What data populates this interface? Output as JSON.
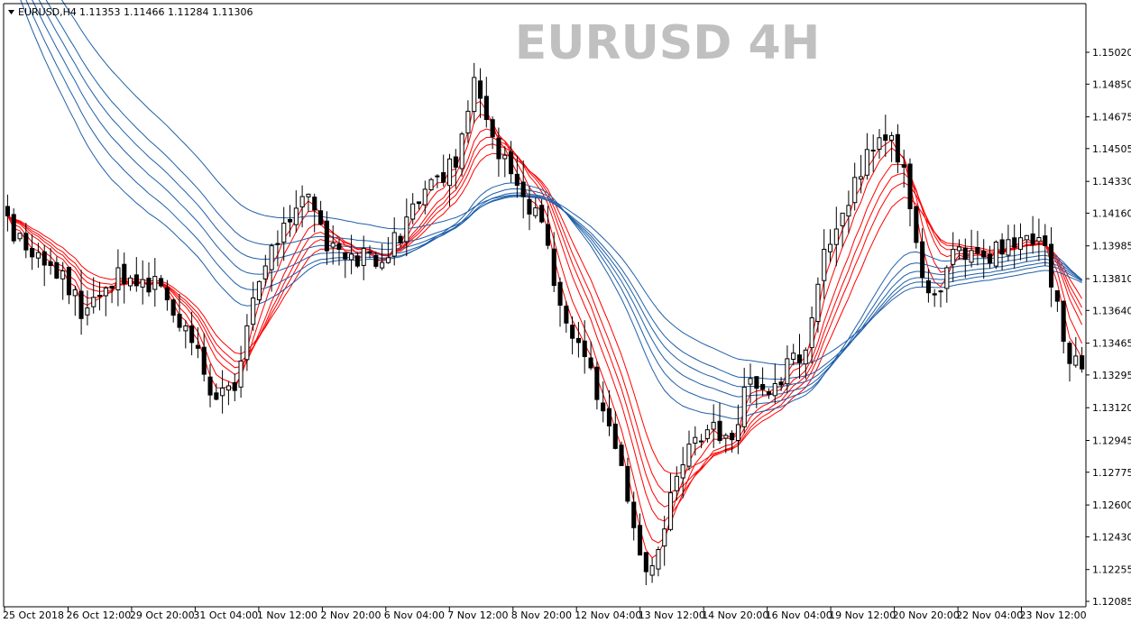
{
  "header": {
    "symbol": "EURUSD,H4",
    "ohlc": "1.11353 1.11466 1.11284 1.11306"
  },
  "watermark": "EURUSD  4H",
  "colors": {
    "background": "#ffffff",
    "bull_body": "#ffffff",
    "bear_body": "#000000",
    "fast_ma": "#ff0000",
    "slow_ma": "#1f5fa8"
  },
  "chart_data": {
    "type": "candlestick",
    "title": "EURUSD  4H",
    "ylim": [
      1.12085,
      1.1515
    ],
    "y_ticks": [
      "1.15020",
      "1.14850",
      "1.14675",
      "1.14505",
      "1.14330",
      "1.14160",
      "1.13985",
      "1.13810",
      "1.13640",
      "1.13465",
      "1.13295",
      "1.13120",
      "1.12945",
      "1.12775",
      "1.12600",
      "1.12430",
      "1.12255",
      "1.12085"
    ],
    "x_ticks": [
      "25 Oct 2018",
      "26 Oct 12:00",
      "29 Oct 20:00",
      "31 Oct 04:00",
      "1 Nov 12:00",
      "2 Nov 20:00",
      "6 Nov 04:00",
      "7 Nov 12:00",
      "8 Nov 20:00",
      "12 Nov 04:00",
      "13 Nov 12:00",
      "14 Nov 20:00",
      "16 Nov 04:00",
      "19 Nov 12:00",
      "20 Nov 20:00",
      "22 Nov 04:00",
      "23 Nov 12:00"
    ],
    "x_anchors": [
      [
        0,
        1.141
      ],
      [
        8,
        1.1385
      ],
      [
        12,
        1.1365
      ],
      [
        18,
        1.1385
      ],
      [
        25,
        1.1375
      ],
      [
        30,
        1.1348
      ],
      [
        34,
        1.1312
      ],
      [
        38,
        1.1332
      ],
      [
        40,
        1.1375
      ],
      [
        45,
        1.1412
      ],
      [
        49,
        1.143
      ],
      [
        52,
        1.1395
      ],
      [
        58,
        1.1392
      ],
      [
        62,
        1.1395
      ],
      [
        66,
        1.1415
      ],
      [
        69,
        1.1428
      ],
      [
        73,
        1.1445
      ],
      [
        76,
        1.149
      ],
      [
        79,
        1.146
      ],
      [
        82,
        1.1432
      ],
      [
        85,
        1.142
      ],
      [
        88,
        1.14
      ],
      [
        90,
        1.1365
      ],
      [
        95,
        1.133
      ],
      [
        98,
        1.1305
      ],
      [
        101,
        1.1265
      ],
      [
        104,
        1.122
      ],
      [
        106,
        1.124
      ],
      [
        110,
        1.1285
      ],
      [
        114,
        1.13
      ],
      [
        118,
        1.1295
      ],
      [
        121,
        1.133
      ],
      [
        124,
        1.132
      ],
      [
        127,
        1.1335
      ],
      [
        130,
        1.1345
      ],
      [
        133,
        1.14
      ],
      [
        136,
        1.1415
      ],
      [
        140,
        1.1445
      ],
      [
        143,
        1.146
      ],
      [
        146,
        1.144
      ],
      [
        148,
        1.1395
      ],
      [
        151,
        1.137
      ],
      [
        155,
        1.14
      ],
      [
        158,
        1.139
      ],
      [
        163,
        1.14
      ],
      [
        166,
        1.1405
      ],
      [
        169,
        1.14
      ],
      [
        172,
        1.1345
      ],
      [
        175,
        1.133
      ]
    ],
    "n_bars": 176,
    "seed": 20181025,
    "series": [
      {
        "name": "fast_ma",
        "periods": [
          3,
          5,
          8,
          10,
          12,
          15
        ],
        "color": "#ff0000"
      },
      {
        "name": "slow_ma",
        "periods": [
          30,
          35,
          40,
          45,
          50,
          60
        ],
        "color": "#1f5fa8"
      }
    ],
    "grid": false,
    "axis_position": "right"
  }
}
